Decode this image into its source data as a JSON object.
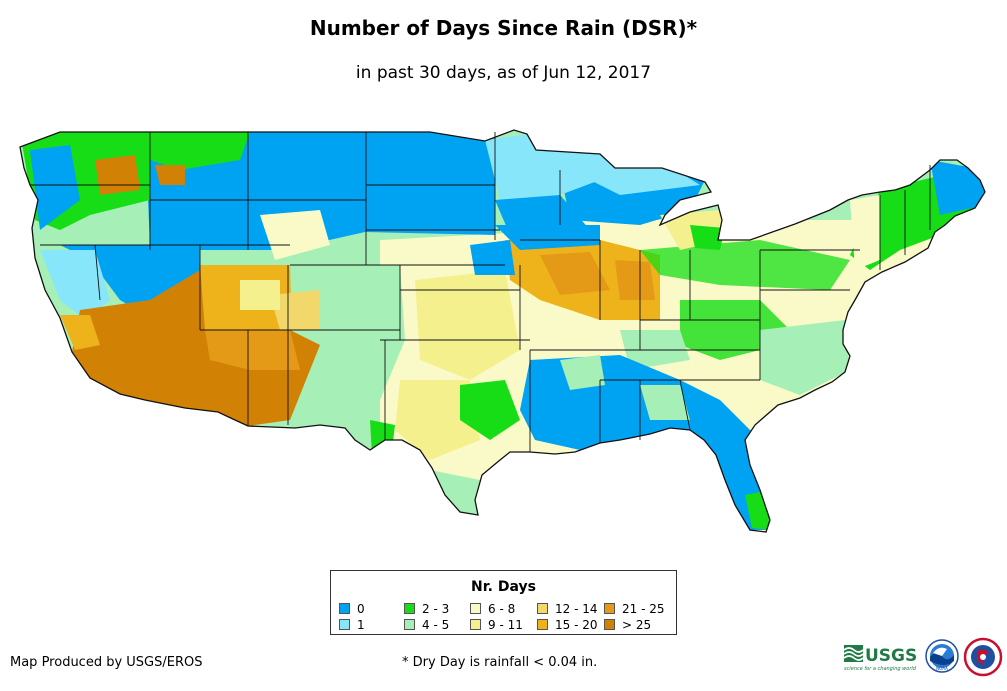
{
  "header": {
    "title": "Number of Days Since Rain (DSR)*",
    "subtitle": "in past 30 days, as of Jun 12, 2017"
  },
  "legend": {
    "title": "Nr. Days",
    "items": [
      {
        "label": "0",
        "color": "#00a2f2"
      },
      {
        "label": "1",
        "color": "#88e6fa"
      },
      {
        "label": "2 - 3",
        "color": "#16dd16"
      },
      {
        "label": "4 - 5",
        "color": "#a6efb6"
      },
      {
        "label": "6 - 8",
        "color": "#fafac8"
      },
      {
        "label": "9 - 11",
        "color": "#f5f08e"
      },
      {
        "label": "12 - 14",
        "color": "#f2d86a"
      },
      {
        "label": "15 - 20",
        "color": "#eeb21a"
      },
      {
        "label": "21 - 25",
        "color": "#e49a16"
      },
      {
        "label": "> 25",
        "color": "#d18205"
      }
    ]
  },
  "footer": {
    "credit": "Map Produced by USGS/EROS",
    "note": "* Dry Day is rainfall < 0.04 in."
  },
  "logos": {
    "usgs": {
      "text": "USGS",
      "tagline": "science for a changing world"
    },
    "noaa": {
      "text": "NOAA"
    }
  }
}
